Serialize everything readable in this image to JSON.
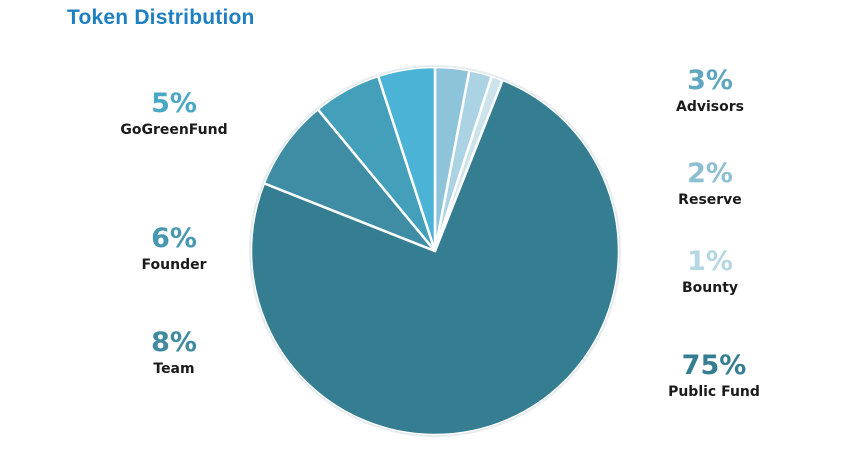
{
  "header": {
    "title": "Token Distribution"
  },
  "chart_data": {
    "type": "pie",
    "title": "Token Distribution",
    "slices": [
      {
        "label": "Public Fund",
        "value": 75,
        "pct_label": "75%",
        "color": "#357e91",
        "label_color": "#357e91"
      },
      {
        "label": "Team",
        "value": 8,
        "pct_label": "8%",
        "color": "#3e8da4",
        "label_color": "#3f8aa0"
      },
      {
        "label": "Founder",
        "value": 6,
        "pct_label": "6%",
        "color": "#449fba",
        "label_color": "#4797b0"
      },
      {
        "label": "GoGreenFund",
        "value": 5,
        "pct_label": "5%",
        "color": "#4bb3d5",
        "label_color": "#4aa8c6"
      },
      {
        "label": "Advisors",
        "value": 3,
        "pct_label": "3%",
        "color": "#8dc4da",
        "label_color": "#5fa7bf"
      },
      {
        "label": "Reserve",
        "value": 2,
        "pct_label": "2%",
        "color": "#acd3e3",
        "label_color": "#8dbfd2"
      },
      {
        "label": "Bounty",
        "value": 1,
        "pct_label": "1%",
        "color": "#cde3ec",
        "label_color": "#b5d6e3"
      }
    ],
    "legend": "none",
    "start": "top",
    "direction": "clockwise-from-top: Advisors, Reserve, Bounty, Public Fund, Team, Founder, GoGreenFund"
  }
}
